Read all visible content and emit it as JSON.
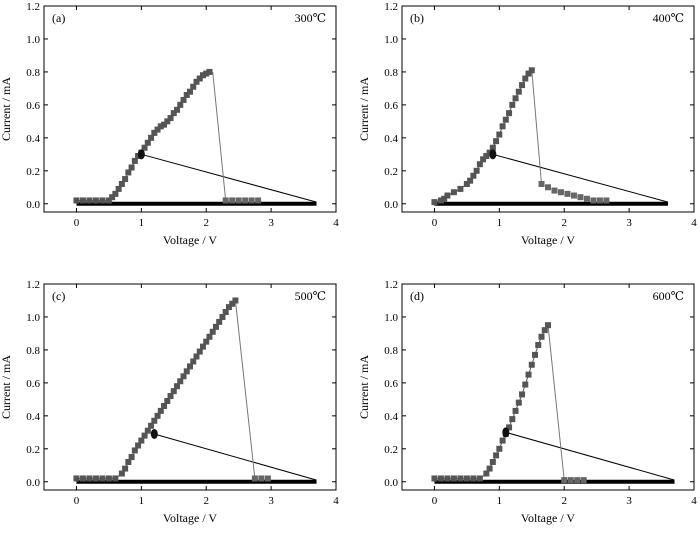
{
  "chart_data": [
    {
      "type": "scatter",
      "panel_label": "(a)",
      "annotation": "300℃",
      "xlabel": "Voltage / V",
      "ylabel": "Current / mA",
      "xlim": [
        -0.5,
        4
      ],
      "ylim": [
        -0.05,
        1.2
      ],
      "xticks": [
        0,
        1,
        2,
        3,
        4
      ],
      "yticks": [
        0.0,
        0.2,
        0.4,
        0.6,
        0.8,
        1.0,
        1.2
      ],
      "ytick_labels": [
        "0.0",
        "0.2",
        "0.4",
        "0.6",
        "0.8",
        "1.0",
        "1.2"
      ],
      "sweep_up": {
        "x": [
          0.0,
          0.1,
          0.2,
          0.3,
          0.4,
          0.5,
          0.55,
          0.6,
          0.65,
          0.7,
          0.75,
          0.8,
          0.85,
          0.9,
          0.95,
          1.0,
          1.05,
          1.1,
          1.15,
          1.2,
          1.25,
          1.3,
          1.35,
          1.4,
          1.45,
          1.5,
          1.55,
          1.6,
          1.65,
          1.7,
          1.75,
          1.8,
          1.85,
          1.9,
          1.95,
          2.0,
          2.05
        ],
        "y": [
          0.02,
          0.02,
          0.02,
          0.02,
          0.02,
          0.02,
          0.04,
          0.06,
          0.09,
          0.12,
          0.15,
          0.19,
          0.22,
          0.26,
          0.29,
          0.31,
          0.34,
          0.37,
          0.4,
          0.43,
          0.45,
          0.47,
          0.48,
          0.5,
          0.52,
          0.55,
          0.57,
          0.6,
          0.63,
          0.66,
          0.68,
          0.71,
          0.74,
          0.76,
          0.78,
          0.79,
          0.8
        ]
      },
      "drop": {
        "x": [
          2.1,
          2.3
        ],
        "y": [
          0.8,
          0.02
        ]
      },
      "tail_points": {
        "x": [
          2.3,
          2.4,
          2.5,
          2.6,
          2.7,
          2.8
        ],
        "y": [
          0.02,
          0.02,
          0.02,
          0.02,
          0.02,
          0.02
        ]
      },
      "return_line": {
        "x": [
          3.7,
          1.0
        ],
        "y": [
          0.01,
          0.3
        ]
      },
      "baseline": {
        "x": [
          0.0,
          3.7
        ],
        "y": [
          0.0,
          0.0
        ]
      }
    },
    {
      "type": "scatter",
      "panel_label": "(b)",
      "annotation": "400℃",
      "xlabel": "Voltage / V",
      "ylabel": "Current / mA",
      "xlim": [
        -0.5,
        4
      ],
      "ylim": [
        -0.05,
        1.2
      ],
      "xticks": [
        0,
        1,
        2,
        3,
        4
      ],
      "yticks": [
        0.0,
        0.2,
        0.4,
        0.6,
        0.8,
        1.0,
        1.2
      ],
      "ytick_labels": [
        "0.0",
        "0.2",
        "0.4",
        "0.6",
        "0.8",
        "1.0",
        "1.2"
      ],
      "sweep_up": {
        "x": [
          0.0,
          0.1,
          0.15,
          0.2,
          0.3,
          0.4,
          0.5,
          0.55,
          0.6,
          0.65,
          0.7,
          0.75,
          0.8,
          0.85,
          0.9,
          0.95,
          1.0,
          1.05,
          1.1,
          1.15,
          1.2,
          1.25,
          1.3,
          1.35,
          1.4,
          1.45,
          1.5
        ],
        "y": [
          0.01,
          0.02,
          0.03,
          0.05,
          0.07,
          0.09,
          0.12,
          0.14,
          0.17,
          0.2,
          0.24,
          0.27,
          0.29,
          0.31,
          0.34,
          0.38,
          0.42,
          0.47,
          0.51,
          0.55,
          0.6,
          0.64,
          0.68,
          0.72,
          0.76,
          0.79,
          0.81
        ]
      },
      "drop": {
        "x": [
          1.5,
          1.65
        ],
        "y": [
          0.81,
          0.12
        ]
      },
      "tail_points": {
        "x": [
          1.65,
          1.75,
          1.85,
          1.95,
          2.05,
          2.15,
          2.25,
          2.35,
          2.45,
          2.55,
          2.65
        ],
        "y": [
          0.12,
          0.1,
          0.08,
          0.07,
          0.06,
          0.05,
          0.04,
          0.03,
          0.02,
          0.02,
          0.02
        ]
      },
      "return_line": {
        "x": [
          3.6,
          0.9
        ],
        "y": [
          0.01,
          0.3
        ]
      },
      "baseline": {
        "x": [
          0.0,
          3.6
        ],
        "y": [
          0.0,
          0.0
        ]
      }
    },
    {
      "type": "scatter",
      "panel_label": "(c)",
      "annotation": "500℃",
      "xlabel": "Voltage / V",
      "ylabel": "Current / mA",
      "xlim": [
        -0.5,
        4
      ],
      "ylim": [
        -0.05,
        1.2
      ],
      "xticks": [
        0,
        1,
        2,
        3,
        4
      ],
      "yticks": [
        0.0,
        0.2,
        0.4,
        0.6,
        0.8,
        1.0,
        1.2
      ],
      "ytick_labels": [
        "0.0",
        "0.2",
        "0.4",
        "0.6",
        "0.8",
        "1.0",
        "1.2"
      ],
      "sweep_up": {
        "x": [
          0.0,
          0.1,
          0.2,
          0.3,
          0.4,
          0.5,
          0.6,
          0.7,
          0.75,
          0.8,
          0.85,
          0.9,
          0.95,
          1.0,
          1.05,
          1.1,
          1.15,
          1.2,
          1.25,
          1.3,
          1.35,
          1.4,
          1.45,
          1.5,
          1.55,
          1.6,
          1.65,
          1.7,
          1.75,
          1.8,
          1.85,
          1.9,
          1.95,
          2.0,
          2.05,
          2.1,
          2.15,
          2.2,
          2.25,
          2.3,
          2.35,
          2.4,
          2.45
        ],
        "y": [
          0.02,
          0.02,
          0.02,
          0.02,
          0.02,
          0.02,
          0.02,
          0.05,
          0.08,
          0.12,
          0.15,
          0.19,
          0.22,
          0.25,
          0.28,
          0.31,
          0.34,
          0.37,
          0.4,
          0.43,
          0.46,
          0.49,
          0.52,
          0.55,
          0.58,
          0.61,
          0.64,
          0.67,
          0.7,
          0.73,
          0.76,
          0.79,
          0.82,
          0.85,
          0.88,
          0.91,
          0.94,
          0.97,
          1.0,
          1.03,
          1.06,
          1.08,
          1.1
        ]
      },
      "drop": {
        "x": [
          2.45,
          2.75
        ],
        "y": [
          1.1,
          0.02
        ]
      },
      "tail_points": {
        "x": [
          2.75,
          2.85,
          2.95
        ],
        "y": [
          0.02,
          0.02,
          0.02
        ]
      },
      "return_line": {
        "x": [
          3.7,
          1.2
        ],
        "y": [
          0.01,
          0.29
        ]
      },
      "baseline": {
        "x": [
          0.0,
          3.7
        ],
        "y": [
          0.0,
          0.0
        ]
      }
    },
    {
      "type": "scatter",
      "panel_label": "(d)",
      "annotation": "600℃",
      "xlabel": "Voltage / V",
      "ylabel": "Current / mA",
      "xlim": [
        -0.5,
        4
      ],
      "ylim": [
        -0.05,
        1.2
      ],
      "xticks": [
        0,
        1,
        2,
        3,
        4
      ],
      "yticks": [
        0.0,
        0.2,
        0.4,
        0.6,
        0.8,
        1.0,
        1.2
      ],
      "ytick_labels": [
        "0.0",
        "0.2",
        "0.4",
        "0.6",
        "0.8",
        "1.0",
        "1.2"
      ],
      "sweep_up": {
        "x": [
          0.0,
          0.1,
          0.2,
          0.3,
          0.4,
          0.5,
          0.6,
          0.7,
          0.8,
          0.85,
          0.9,
          0.95,
          1.0,
          1.05,
          1.1,
          1.15,
          1.2,
          1.25,
          1.3,
          1.35,
          1.4,
          1.45,
          1.5,
          1.55,
          1.6,
          1.65,
          1.7,
          1.75
        ],
        "y": [
          0.02,
          0.02,
          0.02,
          0.02,
          0.02,
          0.02,
          0.02,
          0.02,
          0.05,
          0.08,
          0.12,
          0.16,
          0.2,
          0.25,
          0.29,
          0.33,
          0.38,
          0.43,
          0.48,
          0.53,
          0.59,
          0.65,
          0.71,
          0.77,
          0.83,
          0.88,
          0.92,
          0.95
        ]
      },
      "drop": {
        "x": [
          1.75,
          2.0
        ],
        "y": [
          0.95,
          0.01
        ]
      },
      "tail_points": {
        "x": [
          2.0,
          2.1,
          2.2,
          2.3
        ],
        "y": [
          0.01,
          0.01,
          0.01,
          0.01
        ]
      },
      "return_line": {
        "x": [
          3.7,
          1.1
        ],
        "y": [
          0.01,
          0.3
        ]
      },
      "baseline": {
        "x": [
          0.0,
          3.7
        ],
        "y": [
          0.0,
          0.0
        ]
      }
    }
  ]
}
